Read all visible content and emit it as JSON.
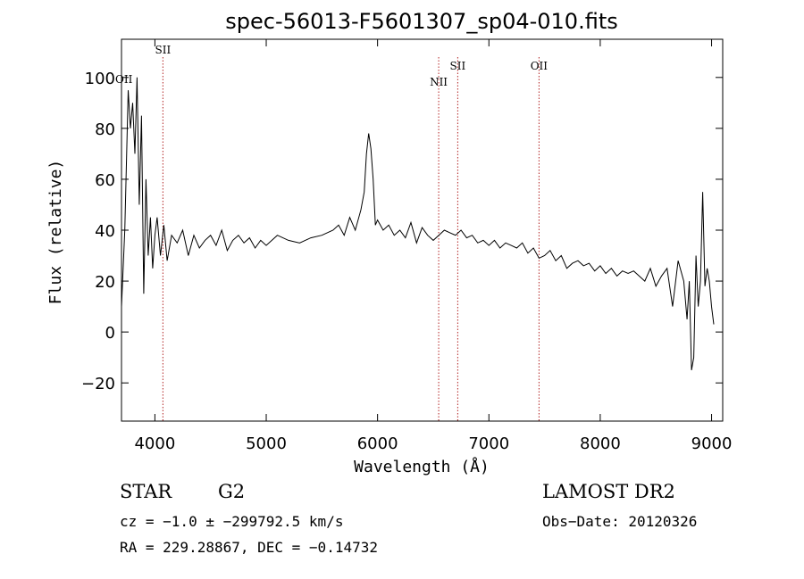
{
  "chart_data": {
    "type": "line",
    "title": "spec-56013-F5601307_sp04-010.fits",
    "xlabel": "Wavelength (Å)",
    "ylabel": "Flux (relative)",
    "xlim": [
      3700,
      9100
    ],
    "ylim": [
      -35,
      115
    ],
    "x_ticks": [
      4000,
      5000,
      6000,
      7000,
      8000,
      9000
    ],
    "y_ticks": [
      -20,
      0,
      20,
      40,
      60,
      80,
      100
    ],
    "grid": false,
    "series": [
      {
        "x": [
          3700,
          3730,
          3760,
          3780,
          3800,
          3820,
          3840,
          3860,
          3880,
          3900,
          3920,
          3940,
          3960,
          3980,
          4000,
          4020,
          4050,
          4080,
          4110,
          4150,
          4200,
          4250,
          4300,
          4350,
          4400,
          4450,
          4500,
          4550,
          4600,
          4650,
          4700,
          4750,
          4800,
          4850,
          4900,
          4950,
          5000,
          5100,
          5200,
          5300,
          5400,
          5500,
          5600,
          5650,
          5700,
          5750,
          5800,
          5850,
          5880,
          5900,
          5920,
          5940,
          5960,
          5980,
          6000,
          6050,
          6100,
          6150,
          6200,
          6250,
          6300,
          6350,
          6400,
          6450,
          6500,
          6550,
          6600,
          6650,
          6700,
          6750,
          6800,
          6850,
          6900,
          6950,
          7000,
          7050,
          7100,
          7150,
          7200,
          7250,
          7300,
          7350,
          7400,
          7450,
          7500,
          7550,
          7600,
          7650,
          7700,
          7750,
          7800,
          7850,
          7900,
          7950,
          8000,
          8050,
          8100,
          8150,
          8200,
          8250,
          8300,
          8350,
          8400,
          8450,
          8500,
          8550,
          8600,
          8650,
          8700,
          8750,
          8780,
          8800,
          8820,
          8840,
          8860,
          8880,
          8900,
          8920,
          8940,
          8960,
          8980,
          9000,
          9020
        ],
        "y": [
          10,
          40,
          95,
          80,
          90,
          70,
          100,
          50,
          85,
          15,
          60,
          30,
          45,
          25,
          38,
          45,
          30,
          42,
          28,
          38,
          35,
          40,
          30,
          38,
          33,
          36,
          38,
          34,
          40,
          32,
          36,
          38,
          35,
          37,
          33,
          36,
          34,
          38,
          36,
          35,
          37,
          38,
          40,
          42,
          38,
          45,
          40,
          48,
          55,
          70,
          78,
          72,
          60,
          42,
          44,
          40,
          42,
          38,
          40,
          37,
          43,
          35,
          41,
          38,
          36,
          38,
          40,
          39,
          38,
          40,
          37,
          38,
          35,
          36,
          34,
          36,
          33,
          35,
          34,
          33,
          35,
          31,
          33,
          29,
          30,
          32,
          28,
          30,
          25,
          27,
          28,
          26,
          27,
          24,
          26,
          23,
          25,
          22,
          24,
          23,
          24,
          22,
          20,
          25,
          18,
          22,
          25,
          10,
          28,
          20,
          5,
          20,
          -15,
          -10,
          30,
          10,
          20,
          55,
          18,
          25,
          20,
          10,
          3
        ]
      }
    ],
    "emission_lines": [
      {
        "label": "SII",
        "x": 4072
      },
      {
        "label": "NII",
        "x": 6549
      },
      {
        "label": "SII",
        "x": 6720
      },
      {
        "label": "OII",
        "x": 7450
      }
    ],
    "edge_label": "OII",
    "line_color": "#b22222"
  },
  "info": {
    "object_class": "STAR",
    "subclass": "G2",
    "survey": "LAMOST DR2",
    "cz": "cz = −1.0 ± −299792.5 km/s",
    "obs_date": "Obs−Date: 20120326",
    "coords": "RA = 229.28867, DEC =  −0.14732"
  }
}
